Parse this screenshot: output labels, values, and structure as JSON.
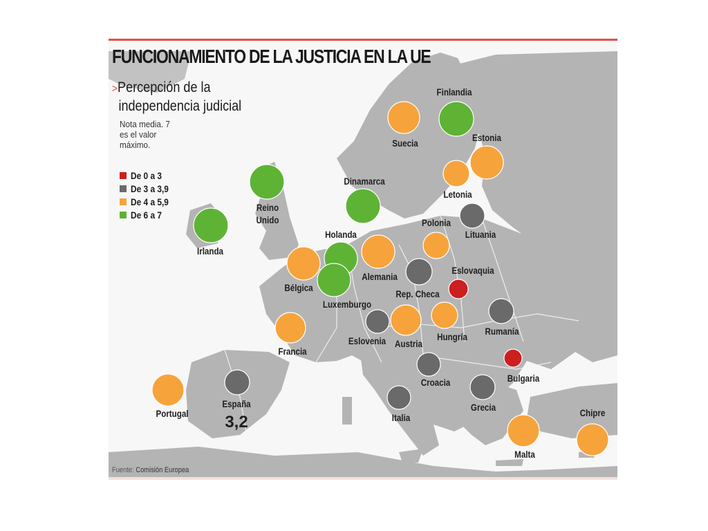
{
  "title": "FUNCIONAMIENTO DE LA JUSTICIA EN LA UE",
  "subtitle_line1": "Percepción de la",
  "subtitle_line2": "independencia judicial",
  "note": "Nota media. 7 es el valor máximo.",
  "legend": [
    {
      "label": "De 0 a 3",
      "color": "#cc1f1f"
    },
    {
      "label": "De 3 a 3,9",
      "color": "#6a6a6a"
    },
    {
      "label": "De 4 a 5,9",
      "color": "#f7a33c"
    },
    {
      "label": "De 6 a 7",
      "color": "#5eb335"
    }
  ],
  "source_prefix": "Fuente:",
  "source_name": "Comisión Europea",
  "countries": [
    {
      "name": "Finlandia",
      "category": 3
    },
    {
      "name": "Suecia",
      "category": 2
    },
    {
      "name": "Estonia",
      "category": 2
    },
    {
      "name": "Letonia",
      "category": 2
    },
    {
      "name": "Dinamarca",
      "category": 3
    },
    {
      "name": "Reino Unido",
      "category": 3
    },
    {
      "name": "Irlanda",
      "category": 3
    },
    {
      "name": "Lituania",
      "category": 1
    },
    {
      "name": "Polonia",
      "category": 2
    },
    {
      "name": "Holanda",
      "category": 3
    },
    {
      "name": "Alemania",
      "category": 2
    },
    {
      "name": "Bélgica",
      "category": 2
    },
    {
      "name": "Luxemburgo",
      "category": 3
    },
    {
      "name": "Rep. Checa",
      "category": 1
    },
    {
      "name": "Eslovaquia",
      "category": 0
    },
    {
      "name": "Francia",
      "category": 2
    },
    {
      "name": "Eslovenia",
      "category": 1
    },
    {
      "name": "Austria",
      "category": 2
    },
    {
      "name": "Hungría",
      "category": 2
    },
    {
      "name": "Rumanía",
      "category": 1
    },
    {
      "name": "Bulgaria",
      "category": 0
    },
    {
      "name": "Croacia",
      "category": 1
    },
    {
      "name": "Portugal",
      "category": 2
    },
    {
      "name": "España",
      "category": 1,
      "value": "3,2"
    },
    {
      "name": "Italia",
      "category": 1
    },
    {
      "name": "Grecia",
      "category": 1
    },
    {
      "name": "Malta",
      "category": 2
    },
    {
      "name": "Chipre",
      "category": 2
    }
  ]
}
